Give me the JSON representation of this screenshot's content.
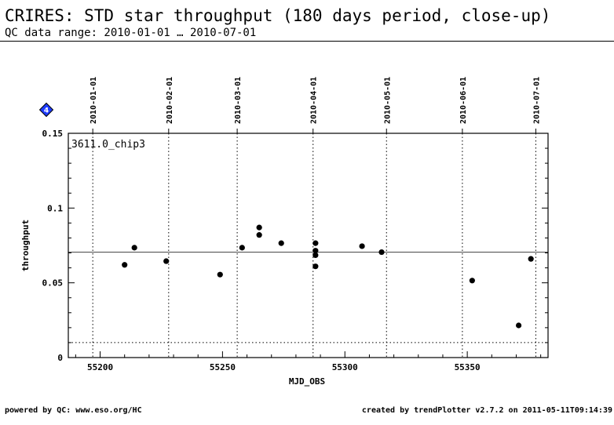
{
  "header": {
    "title": "CRIRES: STD star throughput (180 days period, close-up)",
    "subtitle": "QC data range: 2010-01-01 … 2010-07-01"
  },
  "footer": {
    "left": "powered by QC: www.eso.org/HC",
    "right": "created by trendPlotter v2.7.2 on 2011-05-11T09:14:39"
  },
  "badge": {
    "label": "4",
    "icon": "diamond-icon",
    "color": "#1e3cff"
  },
  "chart_data": {
    "type": "scatter",
    "series_label": "3611.0_chip3",
    "xlabel": "MJD_OBS",
    "ylabel": "throughput",
    "xlim": [
      55187,
      55383
    ],
    "ylim": [
      0,
      0.15
    ],
    "x_ticks": [
      55200,
      55250,
      55300,
      55350
    ],
    "x_tick_labels": [
      "55200",
      "55250",
      "55300",
      "55350"
    ],
    "y_ticks": [
      0,
      0.05,
      0.1,
      0.15
    ],
    "y_tick_labels": [
      "0",
      "0.05",
      "0.1",
      "0.15"
    ],
    "date_markers": [
      {
        "label": "2010-01-01",
        "mjd": 55197
      },
      {
        "label": "2010-02-01",
        "mjd": 55228
      },
      {
        "label": "2010-03-01",
        "mjd": 55256
      },
      {
        "label": "2010-04-01",
        "mjd": 55287
      },
      {
        "label": "2010-05-01",
        "mjd": 55317
      },
      {
        "label": "2010-06-01",
        "mjd": 55348
      },
      {
        "label": "2010-07-01",
        "mjd": 55378
      }
    ],
    "mean_line": 0.0705,
    "lower_limit": 0.01,
    "points": [
      {
        "x": 55210,
        "y": 0.062
      },
      {
        "x": 55214,
        "y": 0.0735
      },
      {
        "x": 55227,
        "y": 0.0645
      },
      {
        "x": 55249,
        "y": 0.0555
      },
      {
        "x": 55258,
        "y": 0.0735
      },
      {
        "x": 55265,
        "y": 0.087
      },
      {
        "x": 55265,
        "y": 0.082
      },
      {
        "x": 55274,
        "y": 0.0765
      },
      {
        "x": 55288,
        "y": 0.0765
      },
      {
        "x": 55288,
        "y": 0.0715
      },
      {
        "x": 55288,
        "y": 0.0685
      },
      {
        "x": 55288,
        "y": 0.061
      },
      {
        "x": 55307,
        "y": 0.0745
      },
      {
        "x": 55315,
        "y": 0.0705
      },
      {
        "x": 55352,
        "y": 0.0515
      },
      {
        "x": 55371,
        "y": 0.0215
      },
      {
        "x": 55376,
        "y": 0.066
      }
    ],
    "colors": {
      "axis": "#000000",
      "points": "#000000",
      "mean": "#555555"
    }
  }
}
